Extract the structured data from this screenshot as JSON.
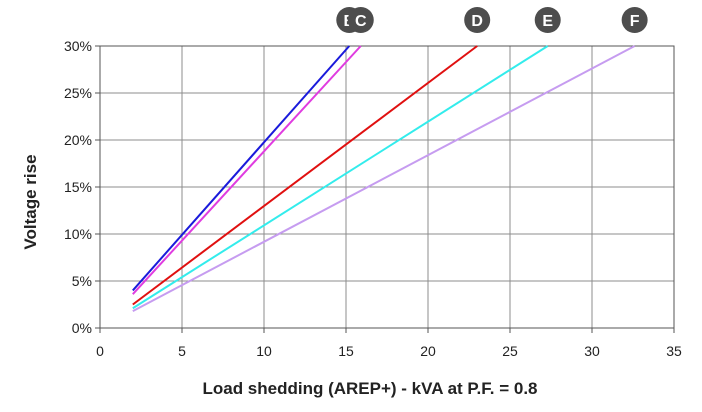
{
  "chart_data": {
    "type": "line",
    "title": "",
    "xlabel": "Load shedding (AREP+) - kVA at P.F. = 0.8",
    "ylabel": "Voltage rise",
    "xlim": [
      0,
      35
    ],
    "ylim": [
      0,
      30
    ],
    "x_ticks": [
      "0",
      "5",
      "10",
      "15",
      "20",
      "25",
      "30",
      "35"
    ],
    "y_ticks": [
      "0%",
      "5%",
      "10%",
      "15%",
      "20%",
      "25%",
      "30%"
    ],
    "grid": true,
    "series": [
      {
        "name": "B",
        "color": "#1a1adb",
        "x": [
          2,
          15.2
        ],
        "y": [
          4,
          30
        ]
      },
      {
        "name": "C",
        "color": "#e03ce0",
        "x": [
          2,
          15.9
        ],
        "y": [
          3.6,
          30
        ]
      },
      {
        "name": "D",
        "color": "#e01010",
        "x": [
          2,
          23
        ],
        "y": [
          2.5,
          30
        ]
      },
      {
        "name": "E",
        "color": "#33ecec",
        "x": [
          2,
          27.3
        ],
        "y": [
          2.1,
          30
        ]
      },
      {
        "name": "F",
        "color": "#c69cf0",
        "x": [
          2,
          32.6
        ],
        "y": [
          1.8,
          30
        ]
      }
    ]
  }
}
